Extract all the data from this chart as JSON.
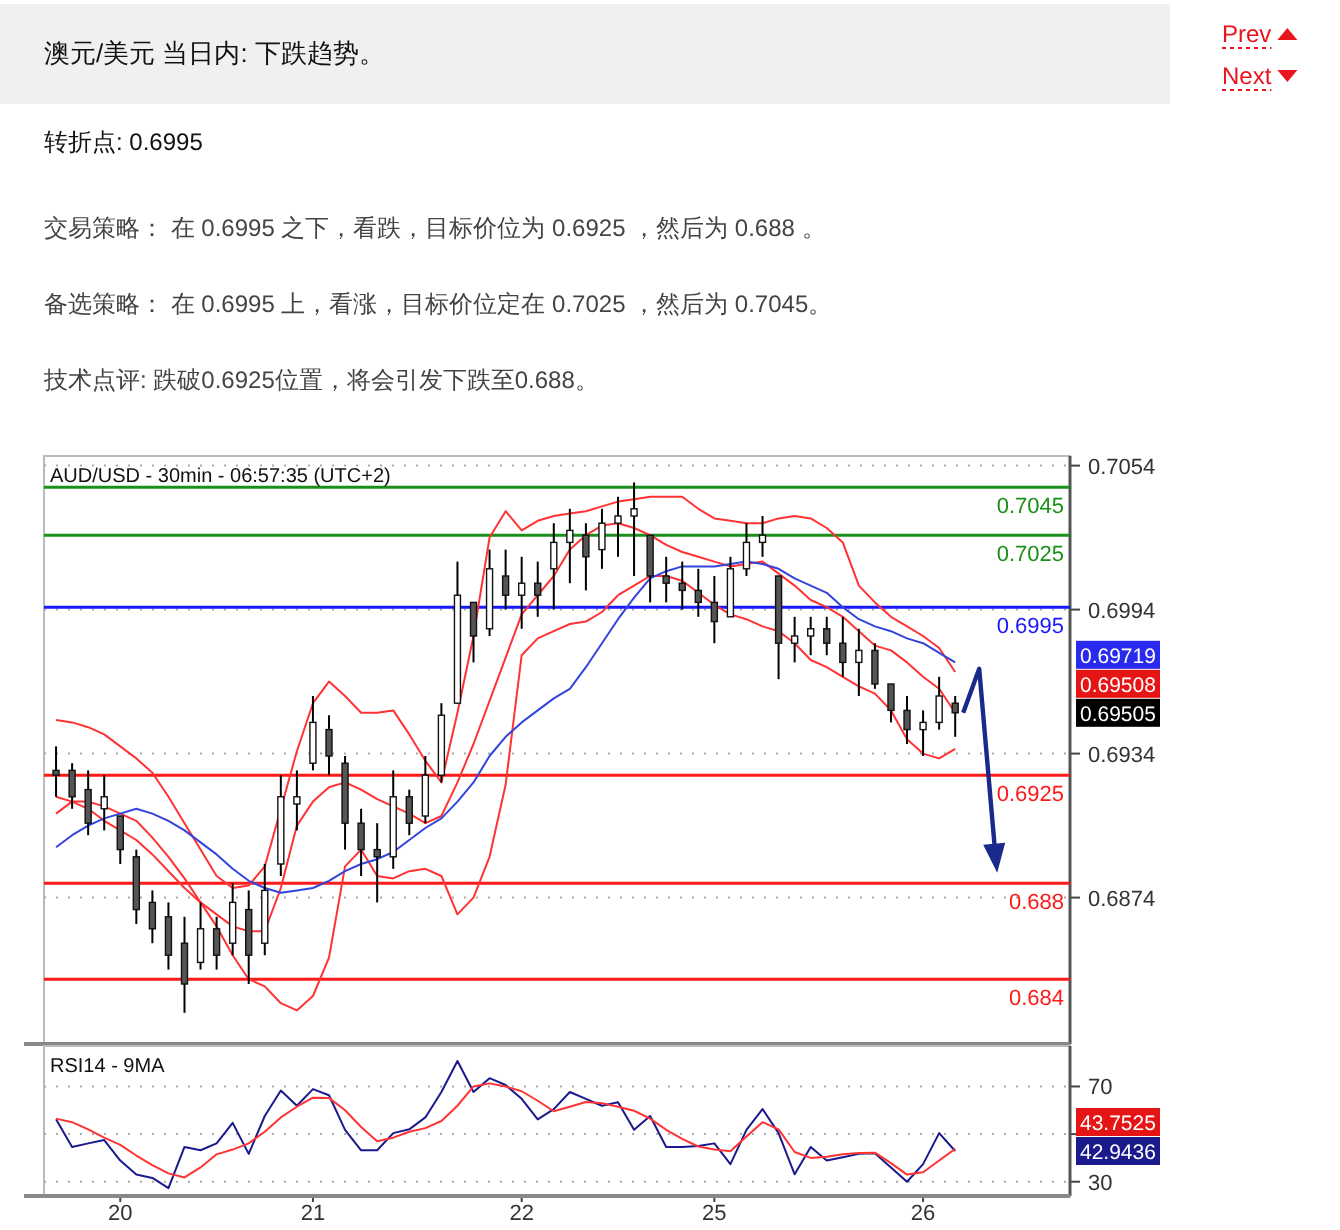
{
  "chart_data": [
    {
      "type": "other",
      "title": "澳元/美元 当日内: 下跌趋势。",
      "annotations": [
        "Prev",
        "Next",
        "转折点: 0.6995",
        "交易策略： 在 0.6995 之下，看跌，目标价位为 0.6925 ，然后为 0.688 。",
        "备选策略： 在 0.6995 上，看涨，目标价位定在 0.7025 ，然后为 0.7045。",
        "技术点评: 跌破0.6925位置，将会引发下跌至0.688。"
      ]
    },
    {
      "type": "candlestick",
      "title": "AUD/USD - 30min - 06:57:35 (UTC+2)",
      "categories": [
        null,
        null,
        null,
        null,
        null,
        null,
        null,
        null,
        null,
        null,
        null,
        null,
        null,
        null,
        null,
        null,
        null,
        null,
        null,
        null,
        null,
        null,
        null,
        null,
        null,
        null,
        null,
        null,
        null,
        null,
        null,
        null,
        null,
        null,
        null,
        null,
        null,
        null,
        null,
        null,
        null,
        null,
        null,
        null,
        null,
        null,
        null,
        null,
        null,
        null,
        null,
        null,
        null,
        null,
        null,
        null,
        null
      ],
      "ohlc": [
        [
          0.6927,
          0.6937,
          0.6916,
          0.6925
        ],
        [
          0.6927,
          0.693,
          0.6911,
          0.6916
        ],
        [
          0.6919,
          0.6927,
          0.69,
          0.6905
        ],
        [
          0.6911,
          0.6925,
          0.6902,
          0.6916
        ],
        [
          0.6908,
          0.6908,
          0.6888,
          0.6894
        ],
        [
          0.6891,
          0.6894,
          0.6863,
          0.6869
        ],
        [
          0.6872,
          0.6877,
          0.6855,
          0.6861
        ],
        [
          0.6866,
          0.6872,
          0.6844,
          0.685
        ],
        [
          0.6855,
          0.6866,
          0.6826,
          0.6838
        ],
        [
          0.6847,
          0.6872,
          0.6844,
          0.6861
        ],
        [
          0.6861,
          0.6866,
          0.6844,
          0.685
        ],
        [
          0.6855,
          0.688,
          0.685,
          0.6872
        ],
        [
          0.6869,
          0.6877,
          0.6838,
          0.685
        ],
        [
          0.6855,
          0.6888,
          0.685,
          0.6877
        ],
        [
          0.6888,
          0.6925,
          0.6883,
          0.6916
        ],
        [
          0.6913,
          0.6927,
          0.6902,
          0.6916
        ],
        [
          0.693,
          0.6958,
          0.6927,
          0.6947
        ],
        [
          0.6944,
          0.695,
          0.6925,
          0.6933
        ],
        [
          0.693,
          0.6933,
          0.6894,
          0.6905
        ],
        [
          0.6905,
          0.6911,
          0.6883,
          0.6894
        ],
        [
          0.6894,
          0.6905,
          0.6872,
          0.6891
        ],
        [
          0.6891,
          0.6927,
          0.6886,
          0.6916
        ],
        [
          0.6916,
          0.6919,
          0.69,
          0.6905
        ],
        [
          0.6908,
          0.6933,
          0.6905,
          0.6925
        ],
        [
          0.6925,
          0.6955,
          0.6922,
          0.695
        ],
        [
          0.6955,
          0.7014,
          0.6955,
          0.7
        ],
        [
          0.6997,
          0.6997,
          0.6972,
          0.6983
        ],
        [
          0.6986,
          0.7019,
          0.6983,
          0.7011
        ],
        [
          0.7008,
          0.7019,
          0.6994,
          0.7
        ],
        [
          0.7,
          0.7016,
          0.6986,
          0.7005
        ],
        [
          0.7005,
          0.7014,
          0.6991,
          0.7
        ],
        [
          0.7011,
          0.703,
          0.6994,
          0.7022
        ],
        [
          0.7022,
          0.7036,
          0.7005,
          0.7027
        ],
        [
          0.7025,
          0.703,
          0.7002,
          0.7016
        ],
        [
          0.7019,
          0.7036,
          0.7011,
          0.703
        ],
        [
          0.703,
          0.7041,
          0.7016,
          0.7033
        ],
        [
          0.7033,
          0.7047,
          0.7008,
          0.7036
        ],
        [
          0.7025,
          0.7025,
          0.6997,
          0.7008
        ],
        [
          0.7008,
          0.7016,
          0.6997,
          0.7005
        ],
        [
          0.7005,
          0.7014,
          0.6994,
          0.7002
        ],
        [
          0.7002,
          0.7011,
          0.6991,
          0.6997
        ],
        [
          0.6997,
          0.7008,
          0.698,
          0.6989
        ],
        [
          0.6991,
          0.7016,
          0.6991,
          0.7011
        ],
        [
          0.7011,
          0.703,
          0.7008,
          0.7022
        ],
        [
          0.7022,
          0.7033,
          0.7016,
          0.7025
        ],
        [
          0.7008,
          0.7008,
          0.6965,
          0.698
        ],
        [
          0.698,
          0.6991,
          0.6972,
          0.6983
        ],
        [
          0.6983,
          0.6991,
          0.6975,
          0.6986
        ],
        [
          0.6986,
          0.6991,
          0.6975,
          0.698
        ],
        [
          0.698,
          0.6991,
          0.6966,
          0.6972
        ],
        [
          0.6972,
          0.6986,
          0.6958,
          0.6977
        ],
        [
          0.6977,
          0.698,
          0.6961,
          0.6963
        ],
        [
          0.6963,
          0.6963,
          0.6947,
          0.6952
        ],
        [
          0.6952,
          0.6958,
          0.6938,
          0.6944
        ],
        [
          0.6944,
          0.6952,
          0.6933,
          0.6947
        ],
        [
          0.6947,
          0.6966,
          0.6944,
          0.6958
        ],
        [
          0.6955,
          0.6958,
          0.6941,
          0.6951
        ]
      ],
      "series": [
        {
          "type": "line",
          "color": "#ff3333",
          "values": [
            0.6948,
            0.6947,
            0.6945,
            0.6942,
            0.6937,
            0.6932,
            0.6926,
            0.6916,
            0.6905,
            0.6894,
            0.6883,
            0.6878,
            0.6879,
            0.6887,
            null,
            0.6935,
            0.6955,
            0.6964,
            0.6958,
            0.6951,
            0.6951,
            0.6952,
            0.6942,
            0.6931,
            0.6922,
            0.6951,
            0.6983,
            0.7024,
            0.7035,
            0.7027,
            0.7031,
            0.7033,
            0.7034,
            0.7035,
            0.7037,
            0.7039,
            0.704,
            0.7041,
            0.7041,
            0.7041,
            0.7036,
            0.7032,
            0.7031,
            0.703,
            0.703,
            0.7032,
            0.7033,
            0.7032,
            0.7028,
            0.7022,
            0.7004,
            0.6997,
            0.6991,
            0.6987,
            0.6983,
            0.6978,
            0.6968
          ]
        },
        {
          "type": "line",
          "color": "#ff3333",
          "values": [
            0.6916,
            0.6914,
            0.6911,
            0.6906,
            0.6902,
            0.6898,
            0.6892,
            0.6885,
            0.6878,
            0.6872,
            0.6867,
            0.6862,
            0.686,
            0.686,
            0.6878,
            0.6904,
            0.6914,
            0.692,
            0.6922,
            0.6919,
            0.6915,
            0.6912,
            0.6909,
            0.6905,
            0.6908,
            0.6922,
            0.6938,
            0.6956,
            0.6974,
            0.6992,
            0.7,
            0.7008,
            0.7019,
            0.7025,
            0.7029,
            0.703,
            0.7028,
            0.7025,
            0.7021,
            0.7018,
            0.7016,
            0.7014,
            0.7012,
            0.7013,
            0.7014,
            0.7009,
            0.7004,
            0.6998,
            0.6995,
            0.6991,
            0.6985,
            0.6979,
            0.6977,
            0.6972,
            0.6966,
            0.6961,
            0.6951
          ]
        },
        {
          "type": "line",
          "color": "#ff3333",
          "values": [
            0.6909,
            0.6914,
            0.6914,
            0.6912,
            0.6909,
            0.6906,
            0.6899,
            0.6891,
            0.6882,
            0.6872,
            0.6862,
            0.685,
            0.684,
            0.6837,
            0.683,
            0.6827,
            0.6833,
            0.6849,
            0.6887,
            0.6894,
            0.6883,
            0.6882,
            0.6885,
            0.6886,
            0.6883,
            0.6867,
            0.6874,
            0.6891,
            0.6921,
            0.6975,
            0.6982,
            0.6985,
            0.6988,
            0.6989,
            0.6993,
            0.7,
            0.7004,
            0.7008,
            0.7008,
            0.7006,
            0.7001,
            0.6996,
            0.6992,
            0.699,
            0.6987,
            0.6985,
            0.698,
            0.6973,
            0.697,
            0.6966,
            0.6962,
            0.6959,
            0.6952,
            0.694,
            0.6934,
            0.6932,
            0.6936
          ]
        },
        {
          "type": "line",
          "color": "#3344dd",
          "values": [
            0.6895,
            0.69,
            0.6904,
            0.6907,
            0.6909,
            0.6911,
            0.6909,
            0.6906,
            0.6902,
            0.6897,
            0.6892,
            0.6886,
            0.6881,
            0.6878,
            0.6876,
            0.6877,
            0.6878,
            0.6881,
            0.6885,
            0.6888,
            0.689,
            0.6893,
            0.6898,
            0.6903,
            0.6907,
            0.6914,
            0.6922,
            0.6933,
            0.6941,
            0.6947,
            0.6952,
            0.6957,
            0.6961,
            0.697,
            0.698,
            0.699,
            0.6999,
            0.7007,
            0.701,
            0.7012,
            0.7012,
            0.7012,
            0.7013,
            0.7014,
            0.7013,
            0.7011,
            0.7007,
            0.7004,
            0.7001,
            0.6995,
            0.699,
            0.6987,
            0.6985,
            0.6982,
            0.698,
            0.6976,
            0.6972
          ]
        }
      ],
      "ylim": [
        0.6813,
        0.7058
      ],
      "yticks": [
        0.7054,
        0.6994,
        0.6934,
        0.6874
      ],
      "tick_labels": "y",
      "grid": "y",
      "ref_lines": [
        {
          "axis": "y",
          "value": 0.7045,
          "label": "0.7045",
          "color": "#1a8f1a"
        },
        {
          "axis": "y",
          "value": 0.7025,
          "label": "0.7025",
          "color": "#1a8f1a"
        },
        {
          "axis": "y",
          "value": 0.6995,
          "label": "0.6995",
          "color": "#1a1aff"
        },
        {
          "axis": "y",
          "value": 0.6925,
          "label": "0.6925",
          "color": "#ff1a1a"
        },
        {
          "axis": "y",
          "value": 0.688,
          "label": "0.688",
          "color": "#ff1a1a"
        },
        {
          "axis": "y",
          "value": 0.684,
          "label": "0.684",
          "color": "#ff1a1a"
        }
      ],
      "annotations": [
        "0.69719",
        "0.69508",
        "0.69505"
      ]
    },
    {
      "type": "line",
      "title": "RSI14 - 9MA",
      "categories": [
        null,
        null,
        null,
        null,
        "20",
        null,
        null,
        null,
        null,
        null,
        null,
        null,
        null,
        null,
        null,
        null,
        "21",
        null,
        null,
        null,
        null,
        null,
        null,
        null,
        null,
        null,
        null,
        null,
        null,
        "22",
        null,
        null,
        null,
        null,
        null,
        null,
        null,
        null,
        null,
        null,
        null,
        "25",
        null,
        null,
        null,
        null,
        null,
        null,
        null,
        null,
        null,
        null,
        null,
        null,
        "26",
        null,
        null
      ],
      "series": [
        {
          "type": "line",
          "color": "#1a1a8c",
          "values": [
            56.2,
            44.6,
            46.1,
            47.5,
            38.9,
            33,
            31.6,
            27.3,
            44.6,
            43.2,
            46.1,
            54.7,
            41.7,
            57.6,
            68.3,
            61.9,
            68.9,
            66.3,
            51.8,
            43.2,
            43.2,
            50.4,
            52,
            57,
            67.7,
            80.7,
            67.7,
            73.5,
            70.6,
            64.8,
            56.2,
            60.5,
            67.7,
            64.8,
            61.9,
            63.4,
            51.8,
            57.6,
            44.6,
            44.6,
            45,
            46.1,
            37.4,
            51.8,
            60.5,
            50.4,
            33.1,
            44.6,
            38.9,
            40.3,
            41.7,
            42,
            36,
            30,
            37.4,
            50.4,
            42.9
          ]
        },
        {
          "type": "line",
          "color": "#ff3333",
          "values": [
            56.5,
            55,
            52,
            48.5,
            45.5,
            41,
            37,
            33.5,
            31.8,
            36,
            41.5,
            43.5,
            46.1,
            51,
            57,
            61.5,
            65.3,
            65.2,
            60,
            53,
            47,
            48.5,
            51,
            52.5,
            55.5,
            61.9,
            70,
            71.3,
            70,
            68,
            64,
            59.6,
            61.5,
            63.5,
            63,
            61.5,
            59.8,
            56.5,
            51.8,
            48,
            44.8,
            43.5,
            42.8,
            49,
            55,
            52,
            42.5,
            40,
            40.5,
            41.5,
            42.1,
            42.2,
            37.8,
            33,
            34,
            38.9,
            43.8
          ]
        }
      ],
      "ylim": [
        24,
        87
      ],
      "yticks": [
        70,
        {
          "value": 50,
          "label": null
        },
        30
      ],
      "grid": "y",
      "annotations": [
        "43.7525",
        "42.9436"
      ]
    }
  ]
}
